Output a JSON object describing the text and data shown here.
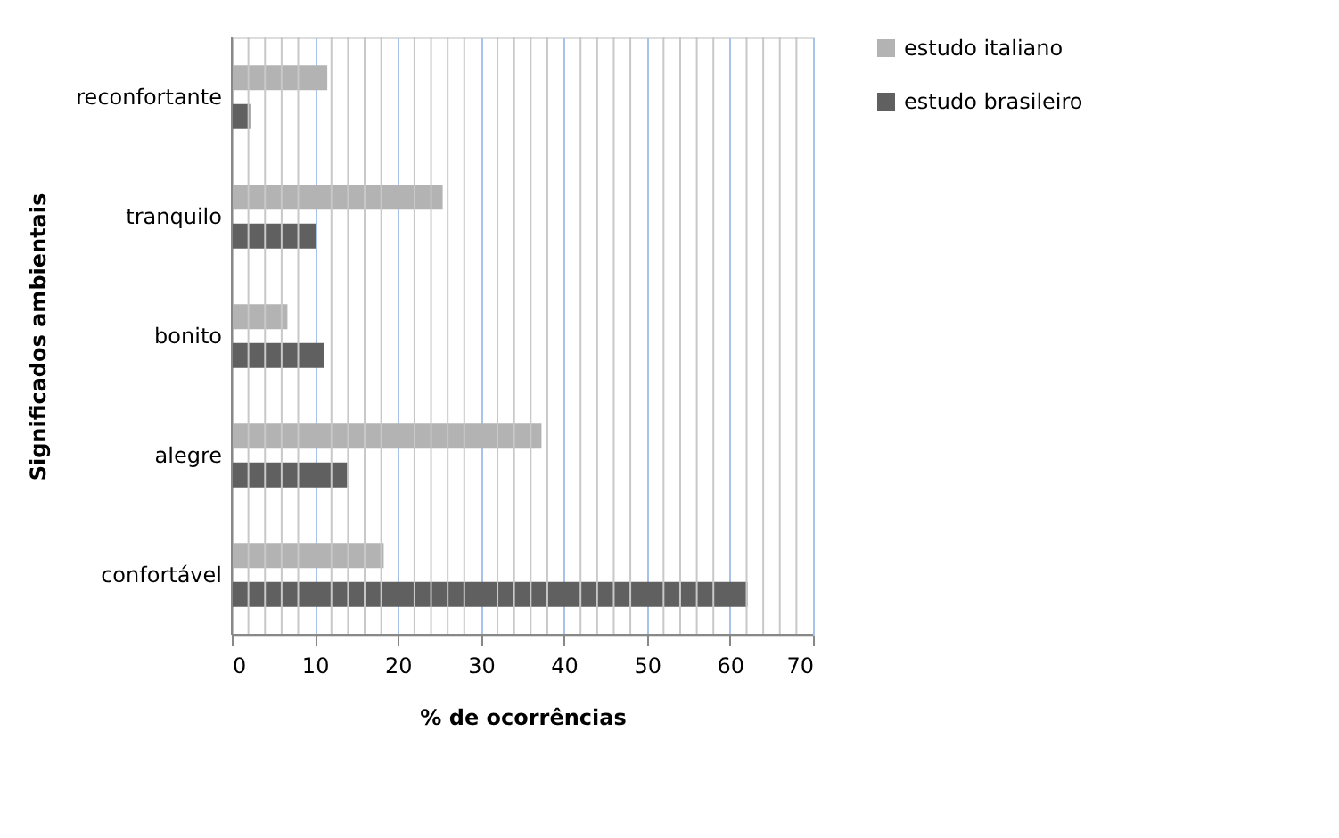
{
  "chart_data": {
    "type": "bar",
    "orientation": "horizontal",
    "xlabel": "% de ocorrências",
    "ylabel": "Significados ambientais",
    "categories": [
      "reconfortante",
      "tranquilo",
      "bonito",
      "alegre",
      "confortável"
    ],
    "series": [
      {
        "name": "estudo italiano",
        "color": "#b3b3b3",
        "values": [
          11.5,
          25.4,
          6.7,
          37.3,
          18.3
        ]
      },
      {
        "name": "estudo brasileiro",
        "color": "#606060",
        "values": [
          2.2,
          10.2,
          11.1,
          13.9,
          62.1
        ]
      }
    ],
    "xlim": [
      0,
      70
    ],
    "xticks": [
      0,
      {
        "value": 2,
        "label": null
      },
      {
        "value": 4,
        "label": null
      },
      {
        "value": 6,
        "label": null
      },
      {
        "value": 8,
        "label": null
      },
      10,
      {
        "value": 12,
        "label": null
      },
      {
        "value": 14,
        "label": null
      },
      {
        "value": 16,
        "label": null
      },
      {
        "value": 18,
        "label": null
      },
      20,
      {
        "value": 22,
        "label": null
      },
      {
        "value": 24,
        "label": null
      },
      {
        "value": 26,
        "label": null
      },
      {
        "value": 28,
        "label": null
      },
      30,
      {
        "value": 32,
        "label": null
      },
      {
        "value": 34,
        "label": null
      },
      {
        "value": 36,
        "label": null
      },
      {
        "value": 38,
        "label": null
      },
      40,
      {
        "value": 42,
        "label": null
      },
      {
        "value": 44,
        "label": null
      },
      {
        "value": 46,
        "label": null
      },
      {
        "value": 48,
        "label": null
      },
      50,
      {
        "value": 52,
        "label": null
      },
      {
        "value": 54,
        "label": null
      },
      {
        "value": 56,
        "label": null
      },
      {
        "value": 58,
        "label": null
      },
      60,
      {
        "value": 62,
        "label": null
      },
      {
        "value": 64,
        "label": null
      },
      {
        "value": 66,
        "label": null
      },
      {
        "value": 68,
        "label": null
      },
      70
    ],
    "grid": "x",
    "legend": "right"
  }
}
